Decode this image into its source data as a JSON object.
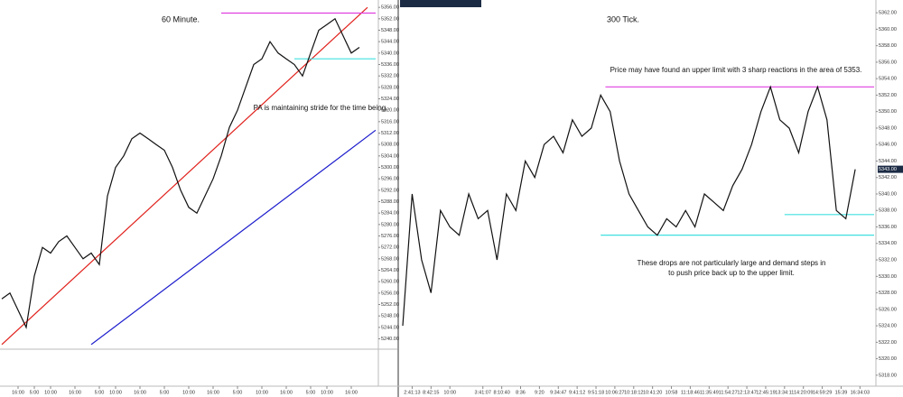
{
  "chart_data": [
    {
      "type": "line",
      "title": "60 Minute.",
      "annotations": [
        [
          "PA is maintaining stride for the time being."
        ]
      ],
      "x": [
        0,
        1,
        2,
        3,
        4,
        5,
        6,
        7,
        8,
        9,
        10,
        11,
        12,
        13,
        14,
        15,
        16,
        17,
        18,
        19,
        20,
        21,
        22,
        23,
        24,
        25,
        26,
        27,
        28,
        29,
        30,
        31,
        32,
        33,
        34,
        35,
        36,
        37,
        38,
        39,
        40,
        41,
        42,
        43,
        44
      ],
      "values": [
        5254,
        5256,
        5250,
        5244,
        5262,
        5272,
        5270,
        5274,
        5276,
        5272,
        5268,
        5270,
        5266,
        5290,
        5300,
        5304,
        5310,
        5312,
        5310,
        5308,
        5306,
        5300,
        5292,
        5286,
        5284,
        5290,
        5296,
        5304,
        5314,
        5320,
        5328,
        5336,
        5338,
        5344,
        5340,
        5338,
        5336,
        5332,
        5340,
        5348,
        5350,
        5352,
        5346,
        5340,
        5342
      ],
      "color": "#111111",
      "xlim": [
        0,
        46
      ],
      "ylim": [
        5237,
        5357
      ],
      "xticks": [
        {
          "value": 2,
          "label": "16:00"
        },
        {
          "value": 4,
          "label": "5:00"
        },
        {
          "value": 6,
          "label": "10:00"
        },
        {
          "value": 9,
          "label": "16:00"
        },
        {
          "value": 12,
          "label": "5:00"
        },
        {
          "value": 14,
          "label": "10:00"
        },
        {
          "value": 17,
          "label": "16:00"
        },
        {
          "value": 20,
          "label": "5:00"
        },
        {
          "value": 23,
          "label": "10:00"
        },
        {
          "value": 26,
          "label": "16:00"
        },
        {
          "value": 29,
          "label": "5:00"
        },
        {
          "value": 32,
          "label": "10:00"
        },
        {
          "value": 35,
          "label": "16:00"
        },
        {
          "value": 38,
          "label": "5:00"
        },
        {
          "value": 40,
          "label": "10:00"
        },
        {
          "value": 43,
          "label": "16:00"
        }
      ],
      "yticks": [
        {
          "value": 5240,
          "label": "5240.00"
        },
        {
          "value": 5244,
          "label": "5244.00"
        },
        {
          "value": 5248,
          "label": "5248.00"
        },
        {
          "value": 5252,
          "label": "5252.00"
        },
        {
          "value": 5256,
          "label": "5256.00"
        },
        {
          "value": 5260,
          "label": "5260.00"
        },
        {
          "value": 5264,
          "label": "5264.00"
        },
        {
          "value": 5268,
          "label": "5268.00"
        },
        {
          "value": 5272,
          "label": "5272.00"
        },
        {
          "value": 5276,
          "label": "5276.00"
        },
        {
          "value": 5280,
          "label": "5280.00"
        },
        {
          "value": 5284,
          "label": "5284.00"
        },
        {
          "value": 5288,
          "label": "5288.00"
        },
        {
          "value": 5292,
          "label": "5292.00"
        },
        {
          "value": 5296,
          "label": "5296.00"
        },
        {
          "value": 5300,
          "label": "5300.00"
        },
        {
          "value": 5304,
          "label": "5304.00"
        },
        {
          "value": 5308,
          "label": "5308.00"
        },
        {
          "value": 5312,
          "label": "5312.00"
        },
        {
          "value": 5316,
          "label": "5316.00"
        },
        {
          "value": 5320,
          "label": "5320.00"
        },
        {
          "value": 5324,
          "label": "5324.00"
        },
        {
          "value": 5328,
          "label": "5328.00"
        },
        {
          "value": 5332,
          "label": "5332.00"
        },
        {
          "value": 5336,
          "label": "5336.00"
        },
        {
          "value": 5340,
          "label": "5340.00"
        },
        {
          "value": 5344,
          "label": "5344.00"
        },
        {
          "value": 5348,
          "label": "5348.00"
        },
        {
          "value": 5352,
          "label": "5352.00"
        },
        {
          "value": 5356,
          "label": "5356.00"
        }
      ],
      "lines": [
        {
          "color": "#e0201b",
          "x": [
            0,
            45
          ],
          "y": [
            5238,
            5356
          ]
        },
        {
          "color": "#1a1acc",
          "x": [
            11,
            46
          ],
          "y": [
            5238,
            5313
          ]
        },
        {
          "color": "#e040e0",
          "x": [
            27,
            46
          ],
          "y": [
            5354,
            5354
          ]
        },
        {
          "color": "#40e0e0",
          "x": [
            36,
            46
          ],
          "y": [
            5338,
            5338
          ]
        }
      ]
    },
    {
      "type": "line",
      "title": "300 Tick.",
      "annotations": [
        [
          "Price may have found an upper limit with 3 sharp reactions in the area of 5353."
        ],
        [
          "These drops are not particularly large and demand steps in",
          "to push price back up to the upper limit."
        ]
      ],
      "x": [
        0,
        2,
        4,
        6,
        8,
        10,
        12,
        14,
        16,
        18,
        20,
        22,
        24,
        26,
        28,
        30,
        32,
        34,
        36,
        38,
        40,
        42,
        44,
        46,
        48,
        50,
        52,
        54,
        56,
        58,
        60,
        62,
        64,
        66,
        68,
        70,
        72,
        74,
        76,
        78,
        80,
        82,
        84,
        86,
        88,
        90,
        92,
        94,
        96
      ],
      "values": [
        5324,
        5340,
        5332,
        5328,
        5338,
        5336,
        5335,
        5340,
        5337,
        5338,
        5332,
        5340,
        5338,
        5344,
        5342,
        5346,
        5347,
        5345,
        5349,
        5347,
        5348,
        5352,
        5350,
        5344,
        5340,
        5338,
        5336,
        5335,
        5337,
        5336,
        5338,
        5336,
        5340,
        5339,
        5338,
        5341,
        5343,
        5346,
        5350,
        5353,
        5349,
        5348,
        5345,
        5350,
        5353,
        5349,
        5338,
        5337,
        5343
      ],
      "color": "#111111",
      "xlim": [
        0,
        100
      ],
      "ylim": [
        5317,
        5363
      ],
      "xticks": [
        {
          "value": 2,
          "label": "2:41:13"
        },
        {
          "value": 6,
          "label": "8:42:15"
        },
        {
          "value": 10,
          "label": "10:00"
        },
        {
          "value": 17,
          "label": "3:41:07"
        },
        {
          "value": 21,
          "label": "8:10:40"
        },
        {
          "value": 25,
          "label": "8:36"
        },
        {
          "value": 29,
          "label": "9:20"
        },
        {
          "value": 33,
          "label": "9:34:47"
        },
        {
          "value": 37,
          "label": "9:41:12"
        },
        {
          "value": 41,
          "label": "9:51:18"
        },
        {
          "value": 45,
          "label": "10:06:27"
        },
        {
          "value": 49,
          "label": "10:18:12"
        },
        {
          "value": 53,
          "label": "10:41:20"
        },
        {
          "value": 57,
          "label": "10:58"
        },
        {
          "value": 61,
          "label": "11:18:46"
        },
        {
          "value": 65,
          "label": "11:35:49"
        },
        {
          "value": 69,
          "label": "11:54:27"
        },
        {
          "value": 73,
          "label": "12:13:47"
        },
        {
          "value": 77,
          "label": "12:45:19"
        },
        {
          "value": 81,
          "label": "13:34:11"
        },
        {
          "value": 85,
          "label": "14:20:09"
        },
        {
          "value": 89,
          "label": "14:59:29"
        },
        {
          "value": 93,
          "label": "15:39"
        },
        {
          "value": 97,
          "label": "16:34:03"
        }
      ],
      "yticks": [
        {
          "value": 5318,
          "label": "5318.00"
        },
        {
          "value": 5320,
          "label": "5320.00"
        },
        {
          "value": 5322,
          "label": "5322.00"
        },
        {
          "value": 5324,
          "label": "5324.00"
        },
        {
          "value": 5326,
          "label": "5326.00"
        },
        {
          "value": 5328,
          "label": "5328.00"
        },
        {
          "value": 5330,
          "label": "5330.00"
        },
        {
          "value": 5332,
          "label": "5332.00"
        },
        {
          "value": 5334,
          "label": "5334.00"
        },
        {
          "value": 5336,
          "label": "5336.00"
        },
        {
          "value": 5338,
          "label": "5338.00"
        },
        {
          "value": 5340,
          "label": "5340.00"
        },
        {
          "value": 5342,
          "label": "5342.00"
        },
        {
          "value": 5344,
          "label": "5344.00"
        },
        {
          "value": 5346,
          "label": "5346.00"
        },
        {
          "value": 5348,
          "label": "5348.00"
        },
        {
          "value": 5350,
          "label": "5350.00"
        },
        {
          "value": 5352,
          "label": "5352.00"
        },
        {
          "value": 5354,
          "label": "5354.00"
        },
        {
          "value": 5356,
          "label": "5356.00"
        },
        {
          "value": 5358,
          "label": "5358.00"
        },
        {
          "value": 5360,
          "label": "5360.00"
        },
        {
          "value": 5362,
          "label": "5362.00"
        }
      ],
      "last": {
        "value": 5343,
        "label": "5343.00"
      },
      "lines": [
        {
          "color": "#e040e0",
          "x": [
            43,
            100
          ],
          "y": [
            5353,
            5353
          ]
        },
        {
          "color": "#40e0e0",
          "x": [
            42,
            100
          ],
          "y": [
            5335,
            5335
          ]
        },
        {
          "color": "#40e0e0",
          "x": [
            81,
            100
          ],
          "y": [
            5337.5,
            5337.5
          ]
        }
      ]
    }
  ]
}
